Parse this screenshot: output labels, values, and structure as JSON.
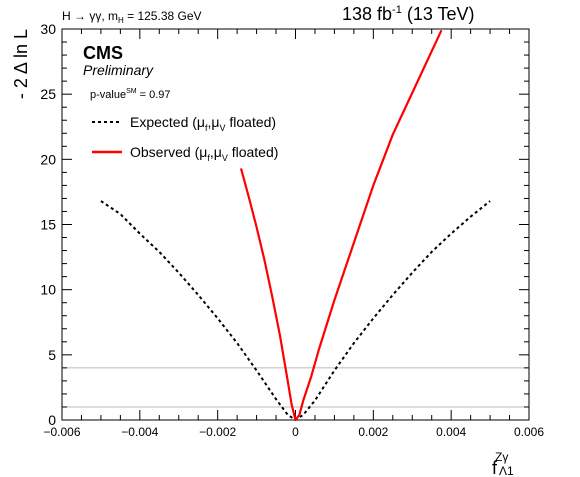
{
  "header": {
    "process": "H → γγ, m",
    "process_sub": "H",
    "process_mass": " = 125.38 GeV",
    "lumi": "138 fb",
    "lumi_sup": "-1",
    "energy": " (13 TeV)"
  },
  "labels": {
    "experiment": "CMS",
    "status": "Preliminary",
    "pvalue": "p-value",
    "pvalue_sup": "SM",
    "pvalue_val": " = 0.97"
  },
  "chart_data": {
    "type": "line",
    "xlabel": "f",
    "xlabel_sup": "Zγ",
    "xlabel_sub": "Λ1",
    "ylabel": "- 2 Δ ln L",
    "xlim": [
      -0.006,
      0.006
    ],
    "ylim": [
      0,
      30
    ],
    "xticks": [
      -0.006,
      -0.004,
      -0.002,
      0,
      0.002,
      0.004,
      0.006
    ],
    "xtick_labels": [
      "−0.006",
      "−0.004",
      "−0.002",
      "0",
      "0.002",
      "0.004",
      "0.006"
    ],
    "yticks": [
      0,
      5,
      10,
      15,
      20,
      25,
      30
    ],
    "ytick_labels": [
      "0",
      "5",
      "10",
      "15",
      "20",
      "25",
      "30"
    ],
    "reference_lines": [
      1,
      4
    ],
    "legend_position": "top-left",
    "series": [
      {
        "name": "Expected (μ",
        "name_sub1": "f",
        "name_mid": ",μ",
        "name_sub2": "V",
        "name_end": " floated)",
        "style": "dashed",
        "color": "#000000",
        "x": [
          -0.005,
          -0.0045,
          -0.004,
          -0.0035,
          -0.003,
          -0.0025,
          -0.002,
          -0.0015,
          -0.001,
          -0.0005,
          -0.0002,
          0,
          0.0002,
          0.0005,
          0.001,
          0.0015,
          0.002,
          0.0025,
          0.003,
          0.0035,
          0.004,
          0.0045,
          0.005
        ],
        "y": [
          16.8,
          15.8,
          14.3,
          12.9,
          11.3,
          9.6,
          7.8,
          5.9,
          3.8,
          1.6,
          0.4,
          0,
          0.4,
          1.5,
          3.8,
          5.9,
          7.8,
          9.6,
          11.3,
          12.9,
          14.3,
          15.6,
          16.8
        ]
      },
      {
        "name": "Observed (μ",
        "name_sub1": "f",
        "name_mid": ",μ",
        "name_sub2": "V",
        "name_end": " floated)",
        "style": "solid",
        "color": "#ff0000",
        "x": [
          -0.0014,
          -0.0012,
          -0.001,
          -0.0008,
          -0.0006,
          -0.0004,
          -0.0002,
          -0.0001,
          0,
          0.0001,
          0.0002,
          0.0004,
          0.0006,
          0.0008,
          0.001,
          0.0015,
          0.002,
          0.0025,
          0.003,
          0.0035,
          0.00375
        ],
        "y": [
          19.3,
          17.1,
          14.8,
          12.3,
          9.5,
          6.5,
          3.0,
          1.2,
          0.0,
          0.4,
          1.5,
          3.3,
          5.4,
          7.3,
          9.2,
          13.6,
          18.0,
          21.9,
          25.1,
          28.3,
          29.9
        ]
      }
    ]
  }
}
